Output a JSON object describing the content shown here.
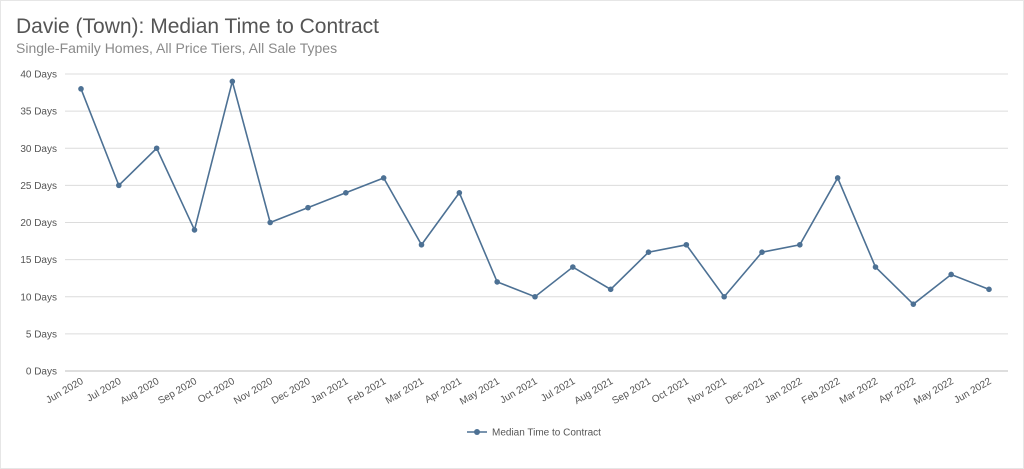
{
  "chart_data": {
    "type": "line",
    "title": "Davie (Town): Median Time to Contract",
    "subtitle": "Single-Family Homes, All Price Tiers, All Sale Types",
    "xlabel": "",
    "ylabel": "",
    "categories": [
      "Jun 2020",
      "Jul 2020",
      "Aug 2020",
      "Sep 2020",
      "Oct 2020",
      "Nov 2020",
      "Dec 2020",
      "Jan 2021",
      "Feb 2021",
      "Mar 2021",
      "Apr 2021",
      "May 2021",
      "Jun 2021",
      "Jul 2021",
      "Aug 2021",
      "Sep 2021",
      "Oct 2021",
      "Nov 2021",
      "Dec 2021",
      "Jan 2022",
      "Feb 2022",
      "Mar 2022",
      "Apr 2022",
      "May 2022",
      "Jun 2022"
    ],
    "series": [
      {
        "name": "Median Time to Contract",
        "values": [
          38,
          25,
          30,
          19,
          39,
          20,
          22,
          24,
          26,
          17,
          24,
          12,
          10,
          14,
          11,
          16,
          17,
          10,
          16,
          17,
          26,
          14,
          9,
          13,
          11
        ]
      }
    ],
    "ylim": [
      0,
      40
    ],
    "yticks": [
      0,
      5,
      10,
      15,
      20,
      25,
      30,
      35,
      40
    ],
    "ytick_suffix": " Days",
    "grid": true,
    "legend_position": "bottom",
    "colors": {
      "series": "#4d7194",
      "grid": "#dcdcdc",
      "text": "#555555"
    }
  }
}
